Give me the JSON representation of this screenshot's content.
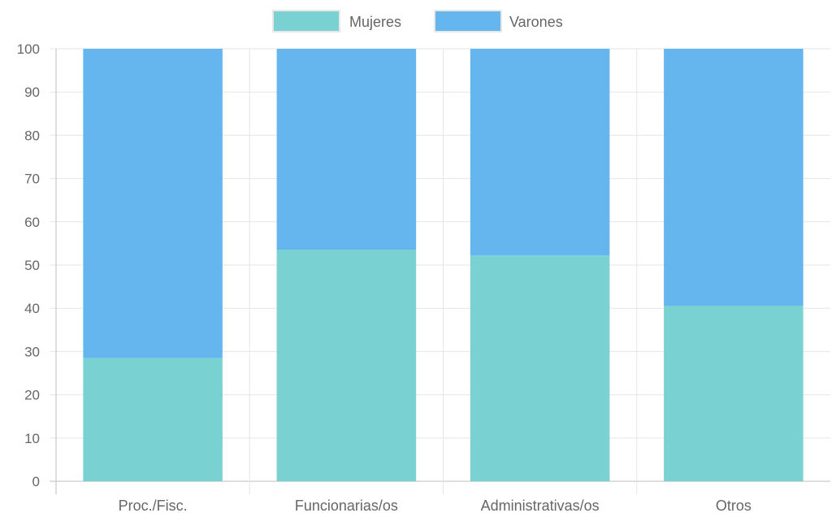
{
  "chart_data": {
    "type": "bar",
    "stacked": true,
    "categories": [
      "Proc./Fisc.",
      "Funcionarias/os",
      "Administrativas/os",
      "Otros"
    ],
    "series": [
      {
        "name": "Mujeres",
        "values": [
          28.5,
          53.5,
          52.2,
          40.6
        ],
        "color": "#7ad1d1"
      },
      {
        "name": "Varones",
        "values": [
          71.5,
          46.5,
          47.8,
          59.4
        ],
        "color": "#65b6ee"
      }
    ],
    "ylim": [
      0,
      100
    ],
    "yticks": [
      "0",
      "10",
      "20",
      "30",
      "40",
      "50",
      "60",
      "70",
      "80",
      "90",
      "100"
    ],
    "grid": true,
    "legend_position": "top"
  }
}
